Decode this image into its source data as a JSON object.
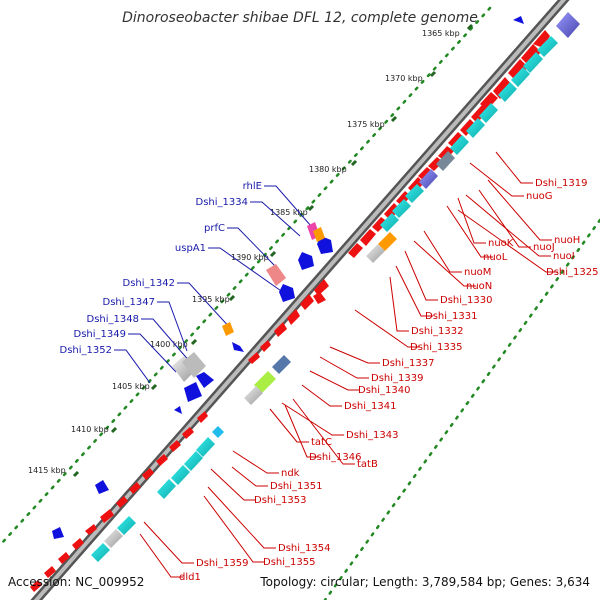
{
  "title": "Dinoroseobacter shibae DFL 12, complete genome",
  "accession": "Accession: NC_009952",
  "summary": "Topology: circular; Length: 3,789,584 bp; Genes: 3,634",
  "colors": {
    "cds": "#ee1111",
    "red_label": "#cc0000",
    "blue_label": "#1a1aaa",
    "gc_tick": "#228822",
    "backbone": "#777777",
    "blue_feature": "#1111dd",
    "cyan_feature": "#22dddd"
  },
  "kbp_ticks": [
    {
      "label": "1365 kbp"
    },
    {
      "label": "1370 kbp"
    },
    {
      "label": "1375 kbp"
    },
    {
      "label": "1380 kbp"
    },
    {
      "label": "1385 kbp"
    },
    {
      "label": "1390 kbp"
    },
    {
      "label": "1395 kbp"
    },
    {
      "label": "1400 kbp"
    },
    {
      "label": "1405 kbp"
    },
    {
      "label": "1410 kbp"
    },
    {
      "label": "1415 kbp"
    }
  ],
  "blue_labels": [
    {
      "text": "rhlE"
    },
    {
      "text": "Dshi_1334"
    },
    {
      "text": "prfC"
    },
    {
      "text": "uspA1"
    },
    {
      "text": "Dshi_1342"
    },
    {
      "text": "Dshi_1347"
    },
    {
      "text": "Dshi_1348"
    },
    {
      "text": "Dshi_1349"
    },
    {
      "text": "Dshi_1352"
    }
  ],
  "red_labels": [
    {
      "text": "Dshi_1319"
    },
    {
      "text": "nuoG"
    },
    {
      "text": "nuoH"
    },
    {
      "text": "nuoJ"
    },
    {
      "text": "nuoI"
    },
    {
      "text": "nuoK"
    },
    {
      "text": "Dshi_1325"
    },
    {
      "text": "nuoL"
    },
    {
      "text": "nuoM"
    },
    {
      "text": "nuoN"
    },
    {
      "text": "Dshi_1330"
    },
    {
      "text": "Dshi_1331"
    },
    {
      "text": "Dshi_1332"
    },
    {
      "text": "Dshi_1335"
    },
    {
      "text": "Dshi_1337"
    },
    {
      "text": "Dshi_1339"
    },
    {
      "text": "Dshi_1340"
    },
    {
      "text": "Dshi_1341"
    },
    {
      "text": "Dshi_1343"
    },
    {
      "text": "tatC"
    },
    {
      "text": "Dshi_1346"
    },
    {
      "text": "tatB"
    },
    {
      "text": "ndk"
    },
    {
      "text": "Dshi_1351"
    },
    {
      "text": "Dshi_1353"
    },
    {
      "text": "Dshi_1354"
    },
    {
      "text": "Dshi_1355"
    },
    {
      "text": "Dshi_1359"
    },
    {
      "text": "dld1"
    }
  ]
}
